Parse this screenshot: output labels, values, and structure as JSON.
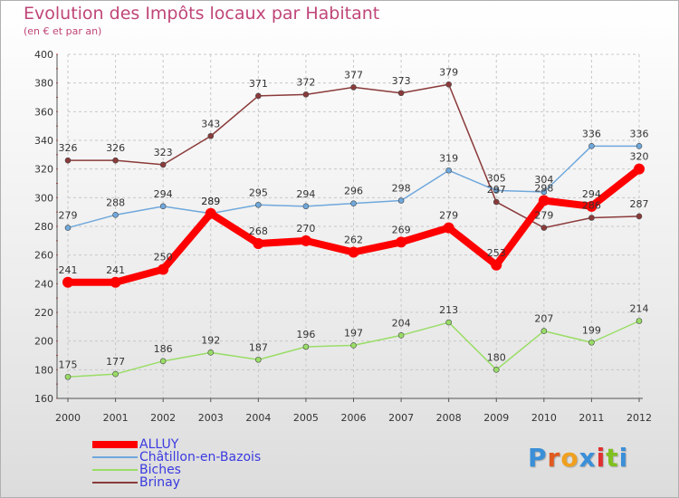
{
  "chart_data": {
    "type": "line",
    "title": "Evolution des Impôts locaux par Habitant",
    "subtitle": "(en € et par an)",
    "x": [
      "2000",
      "2001",
      "2002",
      "2003",
      "2004",
      "2005",
      "2006",
      "2007",
      "2008",
      "2009",
      "2010",
      "2011",
      "2012"
    ],
    "ylim": [
      160,
      400
    ],
    "yticks": [
      "160",
      "180",
      "200",
      "220",
      "240",
      "260",
      "280",
      "300",
      "320",
      "340",
      "360",
      "380",
      "400"
    ],
    "grid": true,
    "legend_position": "bottom-left",
    "series": [
      {
        "name": "ALLUY",
        "color": "#ff0000",
        "values": [
          241,
          241,
          250,
          289,
          268,
          270,
          262,
          269,
          279,
          253,
          298,
          294,
          320
        ],
        "labels": [
          "241",
          "241",
          "250",
          "289",
          "268",
          "270",
          "262",
          "269",
          "279",
          "253",
          "298",
          "294",
          "320"
        ]
      },
      {
        "name": "Châtillon-en-Bazois",
        "color": "#6fa8dc",
        "values": [
          279,
          288,
          294,
          289,
          295,
          294,
          296,
          298,
          319,
          305,
          304,
          336,
          336
        ],
        "labels": [
          "279",
          "288",
          "294",
          "289",
          "295",
          "294",
          "296",
          "298",
          "319",
          "305",
          "304",
          "336",
          "336"
        ]
      },
      {
        "name": "Biches",
        "color": "#99dd66",
        "values": [
          175,
          177,
          186,
          192,
          187,
          196,
          197,
          204,
          213,
          180,
          207,
          199,
          214
        ],
        "labels": [
          "175",
          "177",
          "186",
          "192",
          "187",
          "196",
          "197",
          "204",
          "213",
          "180",
          "207",
          "199",
          "214"
        ]
      },
      {
        "name": "Brinay",
        "color": "#8b3a3a",
        "values": [
          326,
          326,
          323,
          343,
          371,
          372,
          377,
          373,
          379,
          297,
          279,
          286,
          287
        ],
        "labels": [
          "326",
          "326",
          "323",
          "343",
          "371",
          "372",
          "377",
          "373",
          "379",
          "297",
          "279",
          "286",
          "287"
        ]
      }
    ]
  },
  "logo": {
    "letters": [
      "P",
      "r",
      "o",
      "x",
      "i",
      "t",
      "i"
    ],
    "colors": [
      "#3a8fd8",
      "#e05a20",
      "#f0a020",
      "#3a8fd8",
      "#e03030",
      "#80c020",
      "#3a8fd8"
    ]
  }
}
